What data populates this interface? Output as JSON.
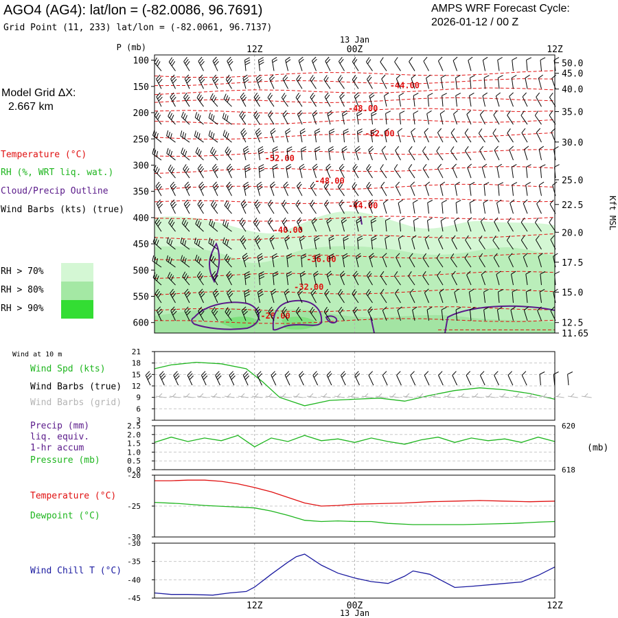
{
  "header": {
    "station_title": "AGO4 (AG4):  lat/lon = (-82.0086, 96.7691)",
    "grid_point": "Grid Point (11, 233) lat/lon = (-82.0061, 96.7137)",
    "forecast_cycle_label": "AMPS WRF Forecast Cycle:",
    "forecast_cycle_value": "2026-01-12 / 00  Z",
    "model_grid_label": "Model Grid ΔX:",
    "model_grid_value": "2.667 km"
  },
  "time_axis": {
    "ticks": [
      "12Z",
      "00Z",
      "12Z"
    ],
    "date_label": "13 Jan",
    "hours_total": 48
  },
  "legends": {
    "upper": [
      {
        "text": "Temperature (°C)",
        "color": "#e01010"
      },
      {
        "text": "RH (%, WRT liq. wat.)",
        "color": "#1db51d"
      },
      {
        "text": "Cloud/Precip Outline",
        "color": "#5a1a8a"
      },
      {
        "text": "Wind Barbs (kts) (true)",
        "color": "#000000"
      }
    ],
    "rh": [
      {
        "text": "RH > 70%",
        "color": "#d4f7d4"
      },
      {
        "text": "RH > 80%",
        "color": "#a4e8a4"
      },
      {
        "text": "RH > 90%",
        "color": "#33dd33"
      }
    ],
    "wind": [
      {
        "text": "Wind Spd (kts)",
        "color": "#1db51d"
      },
      {
        "text": "Wind Barbs (true)",
        "color": "#000000"
      },
      {
        "text": "Wind Barbs (grid)",
        "color": "#b4b4b4"
      }
    ],
    "precip": [
      {
        "text": "Precip (mm)",
        "color": "#5a1a8a"
      },
      {
        "text": "liq. equiv.",
        "color": "#5a1a8a"
      },
      {
        "text": "1-hr accum",
        "color": "#5a1a8a"
      },
      {
        "text": "Pressure (mb)",
        "color": "#1db51d"
      }
    ],
    "temp": [
      {
        "text": "Temperature (°C)",
        "color": "#e01010"
      },
      {
        "text": "Dewpoint (°C)",
        "color": "#1db51d"
      }
    ],
    "chill": [
      {
        "text": "Wind Chill T (°C)",
        "color": "#1a1aa0"
      }
    ]
  },
  "chart_data": [
    {
      "type": "area",
      "name": "upper-air-cross-section",
      "y_label": "P (mb)",
      "y_ticks": [
        "100",
        "150",
        "200",
        "250",
        "300",
        "350",
        "400",
        "450",
        "500",
        "550",
        "600"
      ],
      "y_range_mb": [
        90,
        620
      ],
      "right_axis_label": "Kft MSL",
      "right_ticks": [
        {
          "label": "50.0",
          "p": 105
        },
        {
          "label": "45.0",
          "p": 125
        },
        {
          "label": "40.0",
          "p": 155
        },
        {
          "label": "35.0",
          "p": 198
        },
        {
          "label": "30.0",
          "p": 256
        },
        {
          "label": "25.0",
          "p": 328
        },
        {
          "label": "22.5",
          "p": 375
        },
        {
          "label": "20.0",
          "p": 428
        },
        {
          "label": "17.5",
          "p": 485
        },
        {
          "label": "15.0",
          "p": 542
        },
        {
          "label": "12.5",
          "p": 600
        },
        {
          "label": "11.65",
          "p": 620
        }
      ],
      "temperature_contour_labels": [
        {
          "text": "-44.00",
          "hour": 30,
          "p": 148
        },
        {
          "text": "-48.00",
          "hour": 25,
          "p": 192
        },
        {
          "text": "-52.00",
          "hour": 27,
          "p": 240
        },
        {
          "text": "-52.00",
          "hour": 15,
          "p": 287
        },
        {
          "text": "-48.00",
          "hour": 21,
          "p": 330
        },
        {
          "text": "-44.00",
          "hour": 25,
          "p": 377
        },
        {
          "text": "-40.00",
          "hour": 16,
          "p": 424
        },
        {
          "text": "-36.00",
          "hour": 20,
          "p": 479
        },
        {
          "text": "-32.00",
          "hour": 18.5,
          "p": 532
        },
        {
          "text": "-28.00",
          "hour": 14.5,
          "p": 587
        }
      ],
      "temperature_contour_pressures_mb": [
        130,
        145,
        162,
        180,
        200,
        220,
        248,
        280,
        312,
        345,
        372,
        405,
        440,
        478,
        512,
        545,
        578,
        600
      ]
    },
    {
      "type": "line",
      "name": "surface-wind",
      "title": "Wind at 10 m",
      "y_range": [
        3,
        21
      ],
      "y_ticks": [
        "21",
        "18",
        "15",
        "12",
        "9",
        "6",
        "3"
      ],
      "series": [
        {
          "name": "Wind Spd (kts)",
          "color": "#1db51d",
          "x": [
            0,
            2,
            5,
            8,
            11,
            13,
            15,
            18,
            21,
            24,
            27,
            30,
            33,
            36,
            39,
            42,
            45,
            48
          ],
          "values": [
            16.5,
            17.5,
            18.2,
            17.8,
            16.5,
            13,
            9,
            6.8,
            8.2,
            8.5,
            8.8,
            8,
            9.5,
            10.8,
            11.5,
            11,
            10,
            8.5
          ]
        }
      ]
    },
    {
      "type": "line",
      "name": "precip-pressure",
      "y_range": [
        0,
        2.5
      ],
      "y_ticks": [
        "2.5",
        "2.0",
        "1.5",
        "1.0",
        "0.5",
        "0.0"
      ],
      "right_range_mb": [
        618,
        620
      ],
      "right_label": "(mb)",
      "right_ticks": [
        "620",
        "618"
      ],
      "series": [
        {
          "name": "Pressure (mb)",
          "color": "#1db51d",
          "x": [
            0,
            2,
            4,
            6,
            8,
            10,
            12,
            14,
            16,
            18,
            20,
            22,
            24,
            26,
            28,
            30,
            32,
            34,
            36,
            38,
            40,
            42,
            44,
            46,
            48
          ],
          "values": [
            1.55,
            1.85,
            1.6,
            1.8,
            1.65,
            1.95,
            1.3,
            1.8,
            1.6,
            1.95,
            1.65,
            1.75,
            1.55,
            1.8,
            1.6,
            1.45,
            1.7,
            1.85,
            1.55,
            1.8,
            1.65,
            1.75,
            1.55,
            1.85,
            1.6
          ]
        }
      ]
    },
    {
      "type": "line",
      "name": "temperature-dewpoint",
      "y_range": [
        -30,
        -20
      ],
      "y_ticks": [
        "-20",
        "-25",
        "-30"
      ],
      "series": [
        {
          "name": "Temperature (°C)",
          "color": "#e01010",
          "x": [
            0,
            2,
            4,
            6,
            8,
            10,
            12,
            14,
            16,
            18,
            20,
            22,
            24,
            27,
            30,
            33,
            36,
            39,
            42,
            45,
            48
          ],
          "values": [
            -20.9,
            -20.9,
            -20.8,
            -20.8,
            -21,
            -21.4,
            -22,
            -22.7,
            -23.6,
            -24.5,
            -25,
            -24.9,
            -24.7,
            -24.6,
            -24.5,
            -24.3,
            -24.2,
            -24.1,
            -24.2,
            -24.3,
            -24.2
          ]
        },
        {
          "name": "Dewpoint (°C)",
          "color": "#1db51d",
          "x": [
            0,
            3,
            6,
            9,
            12,
            14,
            16,
            18,
            20,
            22,
            24,
            26,
            28,
            31,
            34,
            37,
            40,
            43,
            46,
            48
          ],
          "values": [
            -24.4,
            -24.6,
            -24.9,
            -25.1,
            -25.3,
            -25.8,
            -26.5,
            -27.3,
            -27.5,
            -27.4,
            -27.5,
            -27.5,
            -27.8,
            -28,
            -28,
            -28,
            -27.9,
            -27.8,
            -27.6,
            -27.5
          ]
        }
      ]
    },
    {
      "type": "line",
      "name": "wind-chill",
      "y_range": [
        -45,
        -30
      ],
      "y_ticks": [
        "-30",
        "-35",
        "-40",
        "-45"
      ],
      "series": [
        {
          "name": "Wind Chill T (°C)",
          "color": "#1a1aa0",
          "x": [
            0,
            2,
            4,
            7,
            9,
            11,
            12,
            14,
            16,
            17,
            18,
            20,
            22,
            24,
            26,
            28,
            30,
            31,
            33,
            36,
            38,
            41,
            44,
            46,
            48
          ],
          "values": [
            -43.6,
            -44,
            -44,
            -44.2,
            -43.6,
            -43.2,
            -42,
            -38.5,
            -35.2,
            -33.7,
            -33,
            -36,
            -38.2,
            -39.5,
            -40.5,
            -41,
            -39,
            -37.6,
            -38.5,
            -42.1,
            -41.8,
            -41.2,
            -40.6,
            -38.8,
            -36.5
          ]
        }
      ]
    }
  ]
}
